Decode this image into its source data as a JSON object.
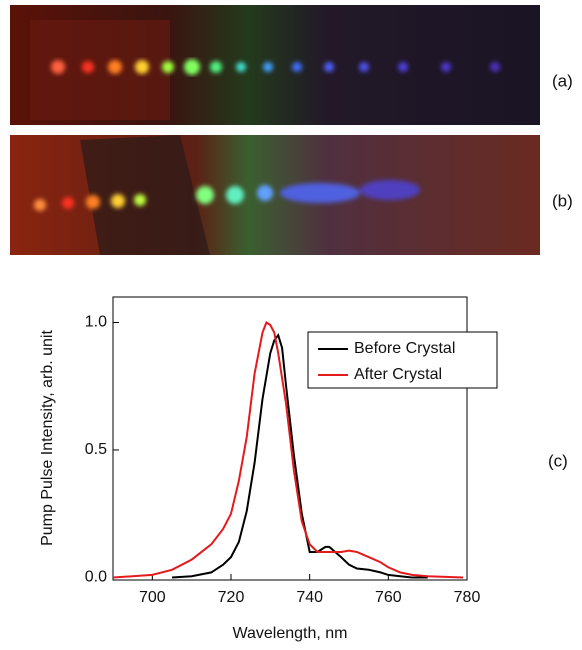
{
  "panel_labels": [
    "(a)",
    "(b)",
    "(c)"
  ],
  "chart_data": {
    "type": "line",
    "x_label": "Wavelength, nm",
    "y_label": "Pump Pulse Intensity, arb. unit",
    "xlim": [
      690,
      780
    ],
    "ylim": [
      -0.01,
      1.1
    ],
    "xticks": [
      700,
      720,
      740,
      760,
      780
    ],
    "yticks": [
      {
        "value": 0,
        "label": "0.0"
      },
      0.5,
      {
        "value": 1,
        "label": "1.0"
      }
    ],
    "series": [
      {
        "name": "Before Crystal",
        "color": "#000000",
        "x": [
          705,
          710,
          715,
          718,
          720,
          722,
          724,
          726,
          728,
          730,
          731,
          732,
          733,
          734,
          736,
          738,
          740,
          742,
          744,
          745,
          748,
          750,
          752,
          755,
          758,
          760,
          763,
          766,
          770
        ],
        "values": [
          0.0,
          0.005,
          0.02,
          0.05,
          0.08,
          0.14,
          0.26,
          0.45,
          0.7,
          0.88,
          0.93,
          0.95,
          0.9,
          0.75,
          0.48,
          0.25,
          0.1,
          0.1,
          0.12,
          0.12,
          0.08,
          0.05,
          0.035,
          0.03,
          0.02,
          0.01,
          0.005,
          0.0,
          0.0
        ]
      },
      {
        "name": "After Crystal",
        "color": "#e41a1c",
        "x": [
          690,
          700,
          705,
          710,
          715,
          718,
          720,
          722,
          724,
          726,
          728,
          729,
          730,
          731,
          732,
          734,
          736,
          738,
          740,
          742,
          745,
          748,
          750,
          752,
          755,
          758,
          760,
          763,
          766,
          770,
          779
        ],
        "values": [
          0.0,
          0.01,
          0.03,
          0.07,
          0.13,
          0.19,
          0.25,
          0.38,
          0.55,
          0.8,
          0.96,
          1.0,
          0.99,
          0.96,
          0.88,
          0.68,
          0.42,
          0.22,
          0.13,
          0.1,
          0.1,
          0.1,
          0.105,
          0.1,
          0.08,
          0.06,
          0.04,
          0.02,
          0.01,
          0.005,
          0.0
        ]
      }
    ]
  }
}
